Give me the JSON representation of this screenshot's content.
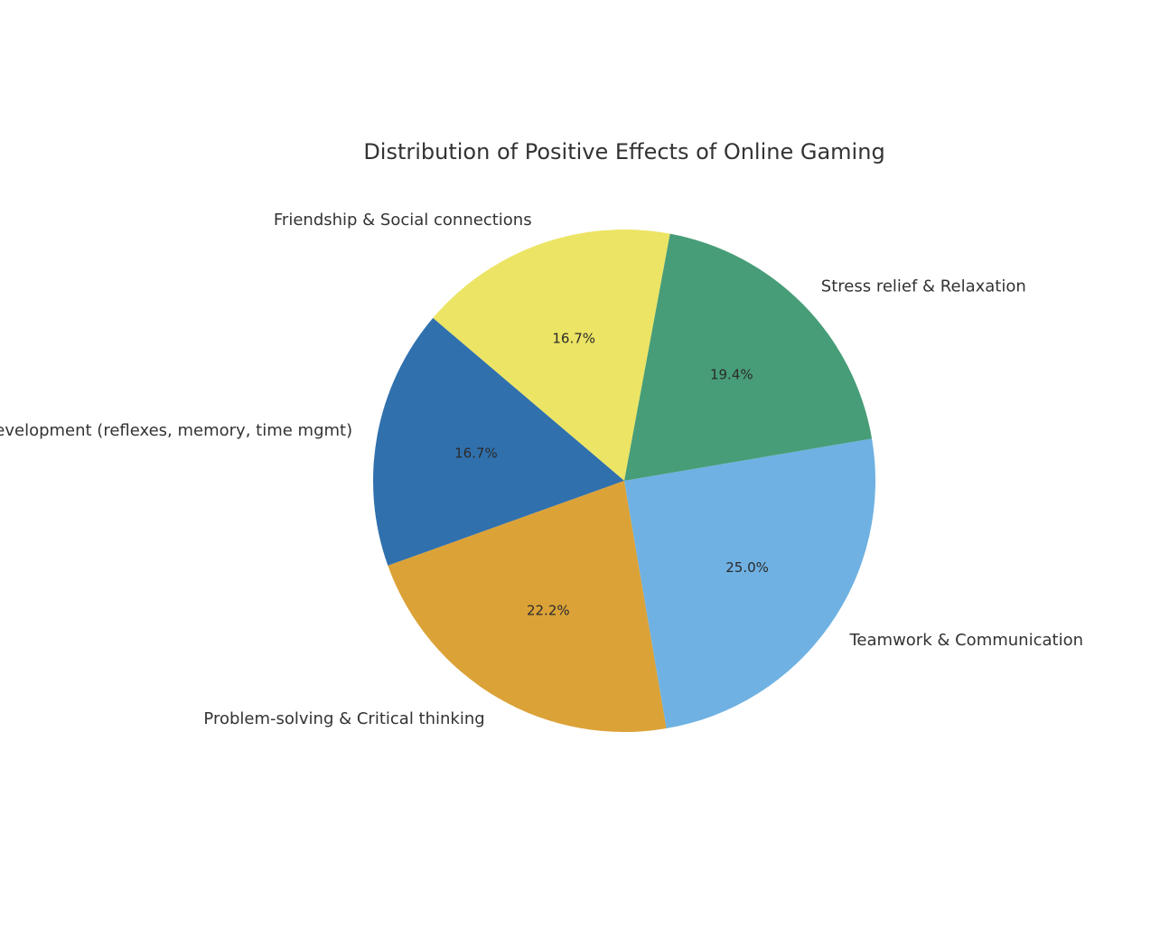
{
  "chart_data": {
    "type": "pie",
    "title": "Distribution of Positive Effects of Online Gaming",
    "slices": [
      {
        "label": "Friendship & Social connections",
        "value": 16.7,
        "pct_label": "16.7%",
        "color": "#ECE464"
      },
      {
        "label": "Skill development (reflexes, memory, time mgmt)",
        "value": 16.7,
        "pct_label": "16.7%",
        "color": "#3070AD"
      },
      {
        "label": "Problem-solving & Critical thinking",
        "value": 22.2,
        "pct_label": "22.2%",
        "color": "#DBA238"
      },
      {
        "label": "Teamwork & Communication",
        "value": 25.0,
        "pct_label": "25.0%",
        "color": "#6FB1E2"
      },
      {
        "label": "Stress relief & Relaxation",
        "value": 19.4,
        "pct_label": "19.4%",
        "color": "#479D77"
      }
    ],
    "start_angle_deg": 79.5,
    "direction": "counterclockwise",
    "legend": "none"
  }
}
